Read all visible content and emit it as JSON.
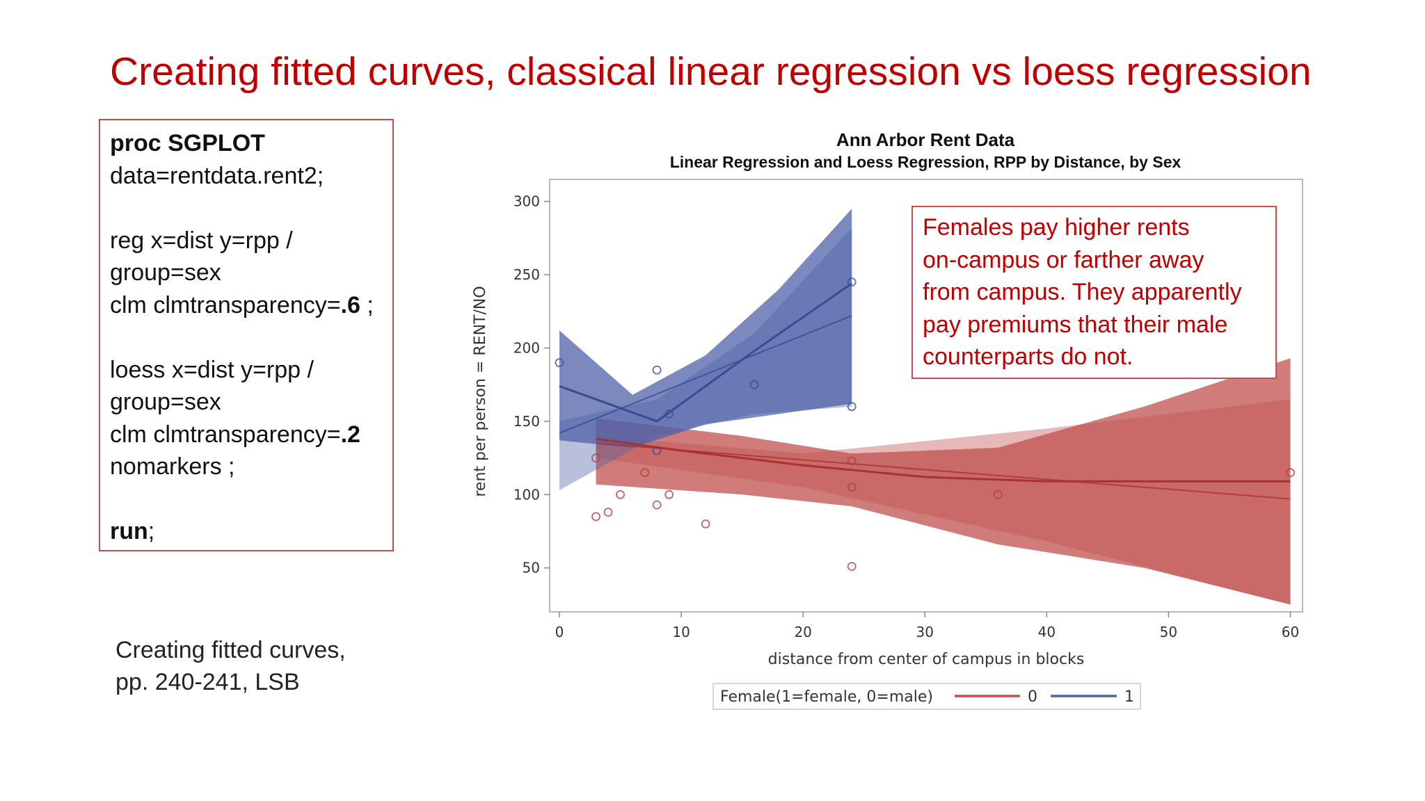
{
  "slide": {
    "title": "Creating fitted curves, classical linear regression vs loess regression",
    "code_lines": [
      [
        {
          "t": "proc SGPLOT",
          "b": true
        }
      ],
      [
        {
          "t": "data=rentdata.rent2;"
        }
      ],
      [
        {
          "t": ""
        }
      ],
      [
        {
          "t": "reg x=dist y=rpp /"
        }
      ],
      [
        {
          "t": "group=sex"
        }
      ],
      [
        {
          "t": "clm clmtransparency="
        },
        {
          "t": ".6",
          "b": true
        },
        {
          "t": " ;"
        }
      ],
      [
        {
          "t": ""
        }
      ],
      [
        {
          "t": "loess x=dist y=rpp /"
        }
      ],
      [
        {
          "t": "group=sex"
        }
      ],
      [
        {
          "t": "clm clmtransparency="
        },
        {
          "t": ".2",
          "b": true
        }
      ],
      [
        {
          "t": "nomarkers ;"
        }
      ],
      [
        {
          "t": ""
        }
      ],
      [
        {
          "t": "run",
          "b": true
        },
        {
          "t": ";"
        }
      ]
    ],
    "reference_lines": [
      "Creating fitted curves,",
      "pp. 240-241, LSB"
    ],
    "callout_lines": [
      "Females pay higher rents",
      "on-campus or farther away",
      "from campus. They apparently",
      "pay premiums that their male",
      "counterparts do not."
    ]
  },
  "chart_data": {
    "type": "scatter",
    "title": "Ann Arbor Rent Data",
    "subtitle": "Linear Regression and Loess Regression, RPP by Distance, by Sex",
    "xlabel": "distance from center of campus in blocks",
    "ylabel": "rent per person = RENT/NO",
    "xlim": [
      -0.8,
      61
    ],
    "ylim": [
      20,
      315
    ],
    "x_ticks": [
      0,
      10,
      20,
      30,
      40,
      50,
      60
    ],
    "y_ticks": [
      50,
      100,
      150,
      200,
      250,
      300
    ],
    "grid": false,
    "legend": {
      "title": "Female(1=female, 0=male)",
      "placement": "bottom",
      "entries": [
        "0",
        "1"
      ]
    },
    "colors": {
      "0": "#c0504d",
      "1": "#4f61a8"
    },
    "series": [
      {
        "name": "0",
        "points": [
          [
            3,
            85
          ],
          [
            4,
            88
          ],
          [
            3,
            125
          ],
          [
            5,
            100
          ],
          [
            7,
            115
          ],
          [
            8,
            93
          ],
          [
            9,
            100
          ],
          [
            12,
            80
          ],
          [
            24,
            51
          ],
          [
            24,
            105
          ],
          [
            24,
            123
          ],
          [
            36,
            100
          ],
          [
            60,
            115
          ]
        ],
        "linear_fit": [
          [
            3,
            135
          ],
          [
            60,
            97
          ]
        ],
        "linear_band_upper": [
          [
            3,
            140
          ],
          [
            20,
            128
          ],
          [
            40,
            145
          ],
          [
            60,
            165
          ]
        ],
        "linear_band_lower": [
          [
            3,
            125
          ],
          [
            20,
            105
          ],
          [
            40,
            68
          ],
          [
            60,
            25
          ]
        ],
        "loess_fit": [
          [
            3,
            138
          ],
          [
            10,
            130
          ],
          [
            20,
            120
          ],
          [
            30,
            112
          ],
          [
            40,
            109
          ],
          [
            50,
            109
          ],
          [
            60,
            109
          ]
        ],
        "loess_band_upper": [
          [
            3,
            152
          ],
          [
            15,
            140
          ],
          [
            24,
            128
          ],
          [
            36,
            132
          ],
          [
            48,
            160
          ],
          [
            60,
            193
          ]
        ],
        "loess_band_lower": [
          [
            3,
            107
          ],
          [
            15,
            100
          ],
          [
            24,
            92
          ],
          [
            36,
            66
          ],
          [
            48,
            50
          ],
          [
            60,
            25
          ]
        ]
      },
      {
        "name": "1",
        "points": [
          [
            0,
            190
          ],
          [
            8,
            185
          ],
          [
            8,
            130
          ],
          [
            9,
            155
          ],
          [
            16,
            175
          ],
          [
            24,
            245
          ],
          [
            24,
            160
          ]
        ],
        "linear_fit": [
          [
            0,
            142
          ],
          [
            24,
            222
          ]
        ],
        "linear_band_upper": [
          [
            0,
            150
          ],
          [
            8,
            165
          ],
          [
            16,
            210
          ],
          [
            24,
            282
          ]
        ],
        "linear_band_lower": [
          [
            0,
            103
          ],
          [
            8,
            140
          ],
          [
            16,
            155
          ],
          [
            24,
            160
          ]
        ],
        "loess_fit": [
          [
            0,
            174
          ],
          [
            8,
            150
          ],
          [
            16,
            198
          ],
          [
            24,
            244
          ]
        ],
        "loess_band_upper": [
          [
            0,
            212
          ],
          [
            6,
            168
          ],
          [
            12,
            195
          ],
          [
            18,
            240
          ],
          [
            24,
            295
          ]
        ],
        "loess_band_lower": [
          [
            0,
            137
          ],
          [
            6,
            132
          ],
          [
            12,
            148
          ],
          [
            18,
            155
          ],
          [
            24,
            162
          ]
        ]
      }
    ]
  }
}
